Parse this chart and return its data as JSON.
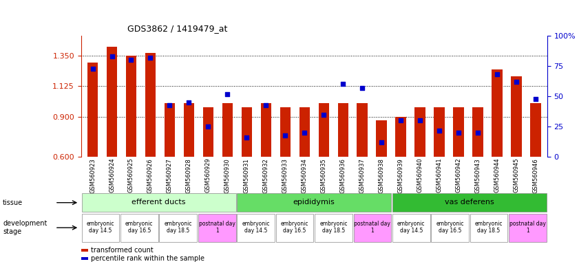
{
  "title": "GDS3862 / 1419479_at",
  "samples": [
    "GSM560923",
    "GSM560924",
    "GSM560925",
    "GSM560926",
    "GSM560927",
    "GSM560928",
    "GSM560929",
    "GSM560930",
    "GSM560931",
    "GSM560932",
    "GSM560933",
    "GSM560934",
    "GSM560935",
    "GSM560936",
    "GSM560937",
    "GSM560938",
    "GSM560939",
    "GSM560940",
    "GSM560941",
    "GSM560942",
    "GSM560943",
    "GSM560944",
    "GSM560945",
    "GSM560946"
  ],
  "transformed_count": [
    1.3,
    1.42,
    1.35,
    1.37,
    1.0,
    1.0,
    0.97,
    1.0,
    0.97,
    1.0,
    0.97,
    0.97,
    1.0,
    1.0,
    1.0,
    0.87,
    0.9,
    0.97,
    0.97,
    0.97,
    0.97,
    1.25,
    1.2,
    1.0
  ],
  "percentile_rank": [
    73,
    83,
    80,
    82,
    43,
    45,
    25,
    52,
    16,
    43,
    18,
    20,
    35,
    60,
    57,
    12,
    30,
    30,
    22,
    20,
    20,
    68,
    62,
    48
  ],
  "ylim_left": [
    0.6,
    1.5
  ],
  "ylim_right": [
    0,
    100
  ],
  "yticks_left": [
    0.6,
    0.9,
    1.125,
    1.35
  ],
  "yticks_right": [
    0,
    25,
    50,
    75,
    100
  ],
  "bar_color": "#cc2200",
  "dot_color": "#0000cc",
  "tissue_groups": [
    {
      "label": "efferent ducts",
      "start": 0,
      "end": 8,
      "color": "#ccffcc"
    },
    {
      "label": "epididymis",
      "start": 8,
      "end": 16,
      "color": "#66dd66"
    },
    {
      "label": "vas deferens",
      "start": 16,
      "end": 24,
      "color": "#33bb33"
    }
  ],
  "dev_stages": [
    {
      "label": "embryonic\nday 14.5",
      "start": 0,
      "end": 2,
      "color": "#ffffff"
    },
    {
      "label": "embryonic\nday 16.5",
      "start": 2,
      "end": 4,
      "color": "#ffffff"
    },
    {
      "label": "embryonic\nday 18.5",
      "start": 4,
      "end": 6,
      "color": "#ffffff"
    },
    {
      "label": "postnatal day\n1",
      "start": 6,
      "end": 8,
      "color": "#ff99ff"
    },
    {
      "label": "embryonic\nday 14.5",
      "start": 8,
      "end": 10,
      "color": "#ffffff"
    },
    {
      "label": "embryonic\nday 16.5",
      "start": 10,
      "end": 12,
      "color": "#ffffff"
    },
    {
      "label": "embryonic\nday 18.5",
      "start": 12,
      "end": 14,
      "color": "#ffffff"
    },
    {
      "label": "postnatal day\n1",
      "start": 14,
      "end": 16,
      "color": "#ff99ff"
    },
    {
      "label": "embryonic\nday 14.5",
      "start": 16,
      "end": 18,
      "color": "#ffffff"
    },
    {
      "label": "embryonic\nday 16.5",
      "start": 18,
      "end": 20,
      "color": "#ffffff"
    },
    {
      "label": "embryonic\nday 18.5",
      "start": 20,
      "end": 22,
      "color": "#ffffff"
    },
    {
      "label": "postnatal day\n1",
      "start": 22,
      "end": 24,
      "color": "#ff99ff"
    }
  ],
  "legend_bar_label": "transformed count",
  "legend_bar_color": "#cc2200",
  "legend_dot_label": "percentile rank within the sample",
  "legend_dot_color": "#0000cc"
}
